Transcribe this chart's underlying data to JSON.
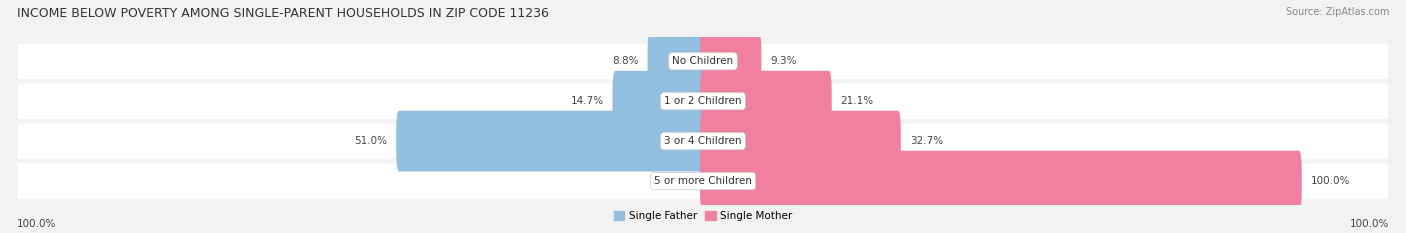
{
  "title": "INCOME BELOW POVERTY AMONG SINGLE-PARENT HOUSEHOLDS IN ZIP CODE 11236",
  "source": "Source: ZipAtlas.com",
  "categories": [
    "No Children",
    "1 or 2 Children",
    "3 or 4 Children",
    "5 or more Children"
  ],
  "single_father": [
    8.8,
    14.7,
    51.0,
    0.0
  ],
  "single_mother": [
    9.3,
    21.1,
    32.7,
    100.0
  ],
  "color_father": "#92bfe0",
  "color_mother": "#f07fa0",
  "bg_color": "#f2f2f2",
  "row_bg_color": "#e8e8e8",
  "axis_max": 100.0,
  "legend_labels": [
    "Single Father",
    "Single Mother"
  ],
  "bottom_left_label": "100.0%",
  "bottom_right_label": "100.0%",
  "title_fontsize": 9,
  "source_fontsize": 7,
  "label_fontsize": 7.5,
  "cat_fontsize": 7.5
}
